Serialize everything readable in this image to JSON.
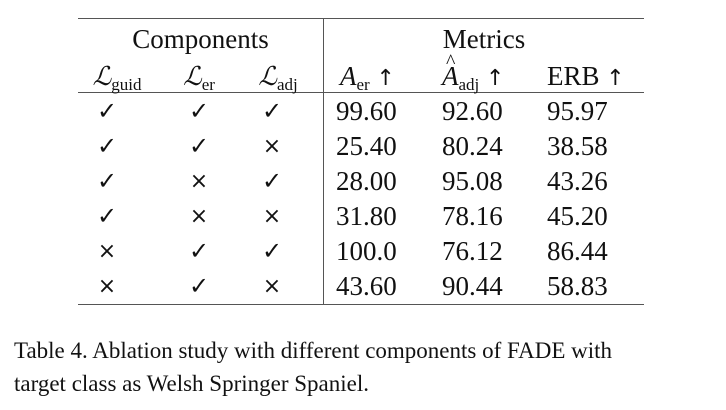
{
  "table": {
    "group_headers": {
      "components": "Components",
      "metrics": "Metrics"
    },
    "columns": [
      {
        "symbol": "ℒ",
        "sub": "guid",
        "arrow": ""
      },
      {
        "symbol": "ℒ",
        "sub": "er",
        "arrow": ""
      },
      {
        "symbol": "ℒ",
        "sub": "adj",
        "arrow": ""
      },
      {
        "symbol": "A",
        "sub": "er",
        "arrow": "↑"
      },
      {
        "symbol": "A",
        "sub": "adj",
        "arrow": "↑"
      },
      {
        "symbol": "ERB",
        "sub": "",
        "arrow": "↑"
      }
    ],
    "rows": [
      {
        "guid": "✓",
        "er": "✓",
        "adj": "✓",
        "a_er": "99.60",
        "a_adj": "92.60",
        "erb": "95.97"
      },
      {
        "guid": "✓",
        "er": "✓",
        "adj": "×",
        "a_er": "25.40",
        "a_adj": "80.24",
        "erb": "38.58"
      },
      {
        "guid": "✓",
        "er": "×",
        "adj": "✓",
        "a_er": "28.00",
        "a_adj": "95.08",
        "erb": "43.26"
      },
      {
        "guid": "✓",
        "er": "×",
        "adj": "×",
        "a_er": "31.80",
        "a_adj": "78.16",
        "erb": "45.20"
      },
      {
        "guid": "×",
        "er": "✓",
        "adj": "✓",
        "a_er": "100.0",
        "a_adj": "76.12",
        "erb": "86.44"
      },
      {
        "guid": "×",
        "er": "✓",
        "adj": "×",
        "a_er": "43.60",
        "a_adj": "90.44",
        "erb": "58.83"
      }
    ]
  },
  "caption": {
    "line1": "Table 4. Ablation study with different components of FADE with",
    "line2": "target class as Welsh Springer Spaniel."
  }
}
